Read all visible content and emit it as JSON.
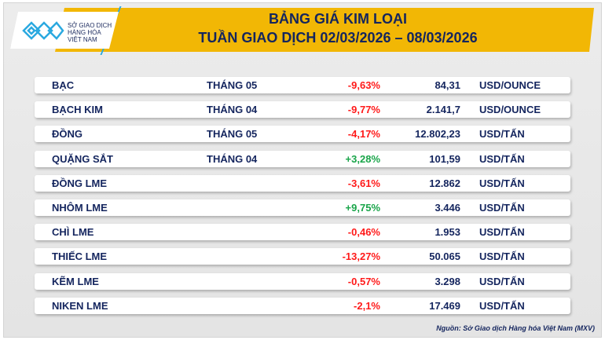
{
  "header": {
    "title_line1": "BẢNG GIÁ KIM LOẠI",
    "title_line2": "TUẦN GIAO DỊCH 02/03/2026 – 08/03/2026"
  },
  "logo": {
    "line1": "SỞ GIAO DỊCH",
    "line2": "HÀNG HÓA",
    "line3": "VIỆT NAM"
  },
  "colors": {
    "band": "#f2b705",
    "text": "#14255e",
    "negative": "#ff1a1a",
    "positive": "#1aa54a",
    "logo": "#2aa9e0"
  },
  "rows": [
    {
      "name": "BẠC",
      "month": "THÁNG 05",
      "change": "-9,63%",
      "price": "84,31",
      "unit": "USD/OUNCE",
      "dir": "neg"
    },
    {
      "name": "BẠCH KIM",
      "month": "THÁNG 04",
      "change": "-9,77%",
      "price": "2.141,7",
      "unit": "USD/OUNCE",
      "dir": "neg"
    },
    {
      "name": "ĐỒNG",
      "month": "THÁNG 05",
      "change": "-4,17%",
      "price": "12.802,23",
      "unit": "USD/TẤN",
      "dir": "neg"
    },
    {
      "name": "QUẶNG SẮT",
      "month": "THÁNG 04",
      "change": "+3,28%",
      "price": "101,59",
      "unit": "USD/TẤN",
      "dir": "pos"
    },
    {
      "name": "ĐỒNG LME",
      "month": "",
      "change": "-3,61%",
      "price": "12.862",
      "unit": "USD/TẤN",
      "dir": "neg"
    },
    {
      "name": "NHÔM LME",
      "month": "",
      "change": "+9,75%",
      "price": "3.446",
      "unit": "USD/TẤN",
      "dir": "pos"
    },
    {
      "name": "CHÌ LME",
      "month": "",
      "change": "-0,46%",
      "price": "1.953",
      "unit": "USD/TẤN",
      "dir": "neg"
    },
    {
      "name": "THIẾC LME",
      "month": "",
      "change": "-13,27%",
      "price": "50.065",
      "unit": "USD/TẤN",
      "dir": "neg"
    },
    {
      "name": "KẼM LME",
      "month": "",
      "change": "-0,57%",
      "price": "3.298",
      "unit": "USD/TẤN",
      "dir": "neg"
    },
    {
      "name": "NIKEN LME",
      "month": "",
      "change": "-2,1%",
      "price": "17.469",
      "unit": "USD/TẤN",
      "dir": "neg"
    }
  ],
  "footer": {
    "source": "Nguồn: Sở Giao dịch Hàng hóa Việt Nam (MXV)"
  }
}
